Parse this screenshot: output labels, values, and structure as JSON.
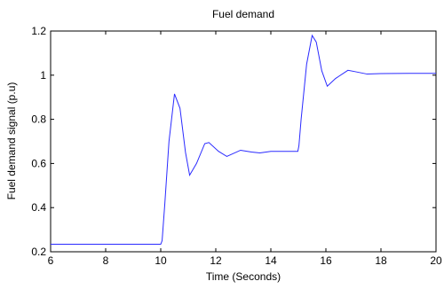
{
  "colors": {
    "line": "#2a2aff",
    "axis": "#000000",
    "background": "#ffffff"
  },
  "chart_data": {
    "type": "line",
    "title": "Fuel demand",
    "xlabel": "Time (Seconds)",
    "ylabel": "Fuel demand signal (p.u)",
    "xlim": [
      6,
      20
    ],
    "ylim": [
      0.2,
      1.2
    ],
    "xticks": [
      "6",
      "8",
      "10",
      "12",
      "14",
      "16",
      "18",
      "20"
    ],
    "yticks": [
      "0.2",
      "0.4",
      "0.6",
      "0.8",
      "1",
      "1.2"
    ],
    "grid": false,
    "series": [
      {
        "x": [
          6,
          8,
          9,
          10,
          10.05,
          10.15,
          10.3,
          10.5,
          10.7,
          10.9,
          11.05,
          11.3,
          11.6,
          11.75,
          12.1,
          12.4,
          12.9,
          13.3,
          13.6,
          14,
          14.5,
          14.98,
          15.02,
          15.1,
          15.3,
          15.5,
          15.65,
          15.85,
          16.05,
          16.35,
          16.8,
          17.1,
          17.5,
          18,
          19,
          20
        ],
        "values": [
          0.234,
          0.234,
          0.234,
          0.234,
          0.25,
          0.42,
          0.7,
          0.915,
          0.85,
          0.65,
          0.547,
          0.6,
          0.69,
          0.695,
          0.655,
          0.632,
          0.66,
          0.652,
          0.648,
          0.655,
          0.655,
          0.655,
          0.68,
          0.8,
          1.05,
          1.18,
          1.15,
          1.02,
          0.95,
          0.985,
          1.022,
          1.015,
          1.005,
          1.007,
          1.008,
          1.008
        ]
      }
    ]
  }
}
